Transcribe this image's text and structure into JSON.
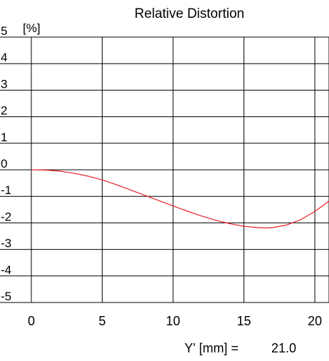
{
  "chart_data": {
    "type": "line",
    "title": "Relative Distortion",
    "ylabel": "[%]",
    "xlabel": "",
    "xlim": [
      0,
      21
    ],
    "ylim": [
      -5,
      5
    ],
    "x_ticks": [
      "0",
      "5",
      "10",
      "15",
      "20"
    ],
    "y_ticks": [
      "5",
      "4",
      "3",
      "2",
      "1",
      "0",
      "-1",
      "-2",
      "-3",
      "-4",
      "-5"
    ],
    "grid": true,
    "series": [
      {
        "color": "#e8202a",
        "x": [
          0,
          1,
          2,
          3,
          4,
          5,
          6,
          7,
          8,
          9,
          10,
          11,
          12,
          13,
          14,
          15,
          16,
          16.5,
          17,
          18,
          19,
          20,
          21
        ],
        "y": [
          0,
          -0.01,
          -0.05,
          -0.13,
          -0.24,
          -0.38,
          -0.56,
          -0.76,
          -0.96,
          -1.16,
          -1.36,
          -1.56,
          -1.74,
          -1.9,
          -2.03,
          -2.13,
          -2.18,
          -2.19,
          -2.18,
          -2.08,
          -1.88,
          -1.57,
          -1.18
        ]
      }
    ],
    "footer": {
      "label": "Y' [mm] =",
      "value": "21.0"
    }
  }
}
